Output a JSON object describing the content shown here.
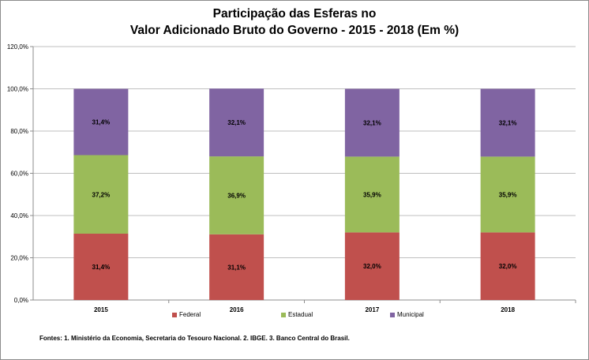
{
  "chart_data": {
    "type": "bar",
    "stacked": true,
    "title": [
      "Participação das Esferas no",
      "Valor Adicionado Bruto do Governo - 2015 - 2018 (Em %)"
    ],
    "categories": [
      "2015",
      "2016",
      "2017",
      "2018"
    ],
    "series": [
      {
        "name": "Federal",
        "color": "#c0504d",
        "values": [
          31.4,
          31.1,
          32.0,
          32.0
        ],
        "labels": [
          "31,4%",
          "31,1%",
          "32,0%",
          "32,0%"
        ]
      },
      {
        "name": "Estadual",
        "color": "#9bbb59",
        "values": [
          37.2,
          36.9,
          35.9,
          35.9
        ],
        "labels": [
          "37,2%",
          "36,9%",
          "35,9%",
          "35,9%"
        ]
      },
      {
        "name": "Municipal",
        "color": "#8064a2",
        "values": [
          31.4,
          32.1,
          32.1,
          32.1
        ],
        "labels": [
          "31,4%",
          "32,1%",
          "32,1%",
          "32,1%"
        ]
      }
    ],
    "ylim": [
      0,
      120
    ],
    "yticks": [
      0,
      20,
      40,
      60,
      80,
      100,
      120
    ],
    "ytick_labels": [
      "0,0%",
      "20,0%",
      "40,0%",
      "60,0%",
      "80,0%",
      "100,0%",
      "120,0%"
    ],
    "grid": true,
    "legend_position": "bottom",
    "gridline_color": "#bfbfbf",
    "axis_color": "#8c8c8c"
  },
  "footer": {
    "source": "Fontes: 1. Ministério da Economia,  Secretaria do Tesouro Nacional.  2. IBGE.  3. Banco  Central do Brasil."
  }
}
